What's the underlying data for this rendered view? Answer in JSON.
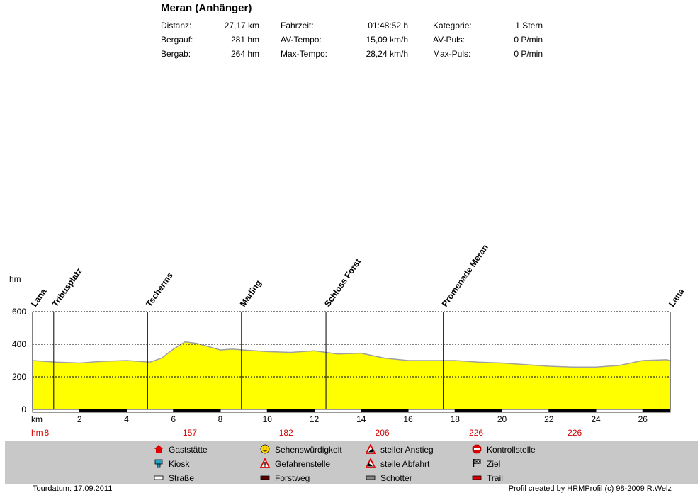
{
  "title": "Meran (Anhänger)",
  "stats": [
    {
      "label": "Distanz:",
      "value": "27,17 km"
    },
    {
      "label": "Bergauf:",
      "value": "281 hm"
    },
    {
      "label": "Bergab:",
      "value": "264 hm"
    },
    {
      "label": "Fahrzeit:",
      "value": "01:48:52 h"
    },
    {
      "label": "AV-Tempo:",
      "value": "15,09 km/h"
    },
    {
      "label": "Max-Tempo:",
      "value": "28,24 km/h"
    },
    {
      "label": "Kategorie:",
      "value": "1 Stern"
    },
    {
      "label": "AV-Puls:",
      "value": "0 P/min"
    },
    {
      "label": "Max-Puls:",
      "value": "0 P/min"
    }
  ],
  "chart_data": {
    "type": "area",
    "ylabel": "hm",
    "xlabel": "km",
    "ylim": [
      0,
      600
    ],
    "xlim": [
      0,
      27.17
    ],
    "yticks": [
      0,
      200,
      400,
      600
    ],
    "xticks": [
      2,
      4,
      6,
      8,
      10,
      12,
      14,
      16,
      18,
      20,
      22,
      24,
      26
    ],
    "grid": "horizontal dashed",
    "fill_color": "#ffff00",
    "x": [
      0,
      0.5,
      1,
      2,
      3,
      4,
      5,
      5.5,
      6,
      6.5,
      7,
      7.5,
      8,
      8.5,
      9,
      10,
      11,
      12,
      13,
      14,
      15,
      16,
      17,
      18,
      19,
      20,
      21,
      22,
      23,
      24,
      25,
      26,
      27,
      27.17
    ],
    "y": [
      300,
      295,
      290,
      285,
      295,
      300,
      290,
      315,
      370,
      415,
      405,
      385,
      365,
      370,
      365,
      355,
      350,
      360,
      340,
      345,
      315,
      300,
      300,
      300,
      290,
      285,
      275,
      265,
      260,
      260,
      270,
      300,
      305,
      300
    ],
    "waypoints": [
      {
        "name": "Lana",
        "km": 0
      },
      {
        "name": "Tribusplatz",
        "km": 0.9
      },
      {
        "name": "Tscherms",
        "km": 4.9
      },
      {
        "name": "Marling",
        "km": 8.9
      },
      {
        "name": "Schloss Forst",
        "km": 12.5
      },
      {
        "name": "Promenade Meran",
        "km": 17.5
      },
      {
        "name": "Lana",
        "km": 27.17
      }
    ],
    "hm_row_label": "hm",
    "hm_values": [
      {
        "km": 0.6,
        "value": "8"
      },
      {
        "km": 6.7,
        "value": "157"
      },
      {
        "km": 10.8,
        "value": "182"
      },
      {
        "km": 14.9,
        "value": "206"
      },
      {
        "km": 18.9,
        "value": "226"
      },
      {
        "km": 23.1,
        "value": "226"
      }
    ],
    "road_segments_black": [
      [
        2,
        4
      ],
      [
        6,
        8
      ],
      [
        10,
        12
      ],
      [
        14,
        16
      ],
      [
        18,
        20
      ],
      [
        22,
        24
      ],
      [
        26,
        27.17
      ]
    ]
  },
  "legend": [
    {
      "label": "Gaststätte",
      "icon": "house-icon",
      "color": "#e00000"
    },
    {
      "label": "Kiosk",
      "icon": "kiosk-icon",
      "color": "#1fa3c8"
    },
    {
      "label": "Straße",
      "icon": "road-icon",
      "color": "#ffffff"
    },
    {
      "label": "Sehenswürdigkeit",
      "icon": "smiley-icon",
      "color": "#ffd800"
    },
    {
      "label": "Gefahrenstelle",
      "icon": "warning-icon",
      "color": "#e00000"
    },
    {
      "label": "Forstweg",
      "icon": "forest-road-icon",
      "color": "#5a0000"
    },
    {
      "label": "steiler Anstieg",
      "icon": "steep-ascent-icon",
      "color": "#e00000"
    },
    {
      "label": "steile Abfahrt",
      "icon": "steep-descent-icon",
      "color": "#e00000"
    },
    {
      "label": "Schotter",
      "icon": "gravel-icon",
      "color": "#8a8a8a"
    },
    {
      "label": "Kontrollstelle",
      "icon": "stop-icon",
      "color": "#e00000"
    },
    {
      "label": "Ziel",
      "icon": "finish-flag-icon",
      "color": "#000000"
    },
    {
      "label": "Trail",
      "icon": "trail-icon",
      "color": "#e00000"
    }
  ],
  "footer": {
    "date": "Tourdatum: 17.09.2011",
    "credit": "Profil created by HRMProfil (c) 98-2009 R.Welz"
  }
}
